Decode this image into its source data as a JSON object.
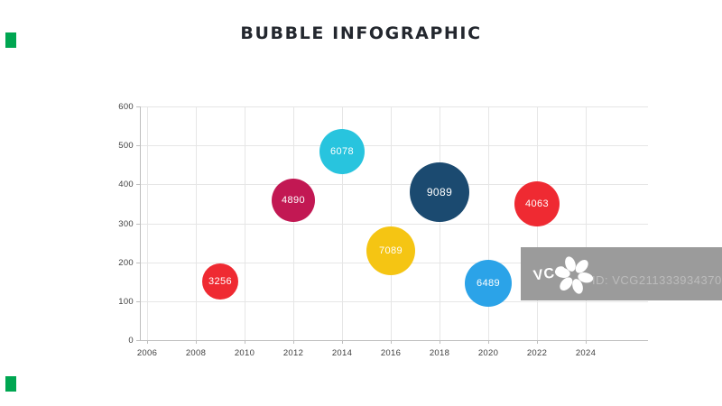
{
  "title": "BUBBLE INFOGRAPHIC",
  "watermark": {
    "brand": "VCG",
    "id_text": "ID: VCG211333934370",
    "box_color": "#9b9b9b",
    "id_text_color": "#bcbcbc",
    "logo_color": "#ffffff"
  },
  "corner_marks": {
    "color": "#00a651"
  },
  "chart_data": {
    "type": "scatter",
    "subtype": "bubble",
    "title": "BUBBLE INFOGRAPHIC",
    "xlabel": "",
    "ylabel": "",
    "x_ticks": [
      2006,
      2008,
      2010,
      2012,
      2014,
      2016,
      2018,
      2020,
      2022,
      2024
    ],
    "y_ticks": [
      0,
      100,
      200,
      300,
      400,
      500,
      600
    ],
    "xlim": [
      2006,
      2026.5
    ],
    "ylim": [
      0,
      600
    ],
    "grid": true,
    "legend": false,
    "points": [
      {
        "label": "3256",
        "x": 2009,
        "y": 150,
        "r": 20,
        "color": "#ef2a32"
      },
      {
        "label": "4890",
        "x": 2012,
        "y": 360,
        "r": 24,
        "color": "#c21853"
      },
      {
        "label": "6078",
        "x": 2014,
        "y": 485,
        "r": 25,
        "color": "#28c4de"
      },
      {
        "label": "7089",
        "x": 2016,
        "y": 230,
        "r": 27,
        "color": "#f5c513"
      },
      {
        "label": "9089",
        "x": 2018,
        "y": 380,
        "r": 33,
        "color": "#1b4a70"
      },
      {
        "label": "6489",
        "x": 2020,
        "y": 145,
        "r": 26,
        "color": "#2ba3e8"
      },
      {
        "label": "4063",
        "x": 2022,
        "y": 350,
        "r": 25,
        "color": "#ef2a32"
      }
    ]
  }
}
